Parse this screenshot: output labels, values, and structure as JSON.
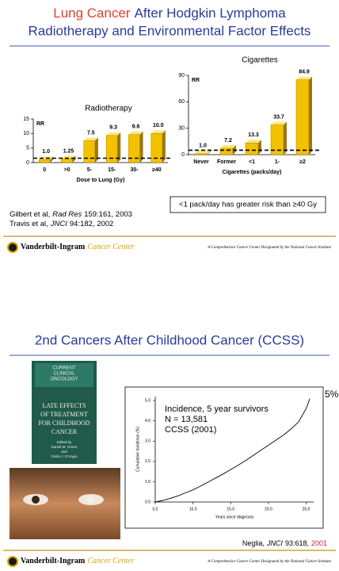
{
  "slide1": {
    "title_parts": [
      "Lung Cancer",
      "After Hodgkin Lymphoma"
    ],
    "title_line2": "Radiotherapy and Environmental Factor Effects",
    "note": "<1 pack/day has greater risk than ≥40 Gy",
    "citations": [
      [
        "Gilbert et al,",
        "Rad Res",
        "159:161, 2003"
      ],
      [
        "Travis et al,",
        "JNCI",
        "94:182, 2002"
      ]
    ]
  },
  "slide2": {
    "title": "2nd Cancers After Childhood Cancer (CCSS)",
    "book": {
      "series": [
        "CURRENT",
        "CLINICAL",
        "ONCOLOGY"
      ],
      "title": [
        "LATE EFFECTS",
        "OF TREATMENT",
        "FOR CHILDHOOD",
        "CANCER"
      ],
      "editors": [
        "Edited by",
        "Daniel M. Green",
        "and",
        "Giulio J. D'Angio"
      ]
    },
    "side_label": "5%",
    "citation": [
      "Neglia,",
      "JNCI",
      "93:618,",
      "2001"
    ]
  },
  "footer": {
    "logo_name": "Vanderbilt-Ingram",
    "logo_sub": "Cancer Center",
    "tagline": "A Comprehensive Cancer Center Designated by the National Cancer Institute"
  },
  "chart_data": [
    {
      "type": "bar",
      "title": "Radiotherapy",
      "ylabel": "RR",
      "xlabel": "Dose to Lung (Gy)",
      "categories": [
        "0",
        ">0",
        "5-",
        "15-",
        "30-",
        "≥40"
      ],
      "values": [
        1.0,
        1.25,
        7.5,
        9.3,
        9.6,
        10.0
      ],
      "value_labels": [
        "1.0",
        "1.25",
        "7.5",
        "9.3",
        "9.6",
        "10.0"
      ],
      "color": "#f2c200",
      "reference_line": 1.5,
      "ylim": [
        0,
        15
      ],
      "yticks": [
        0,
        5,
        10,
        15
      ]
    },
    {
      "type": "bar",
      "title": "Cigarettes",
      "ylabel": "RR",
      "xlabel": "Cigarettes (packs/day)",
      "categories": [
        "Never",
        "Former",
        "<1",
        "1-",
        "≥2"
      ],
      "values": [
        1.0,
        7.2,
        13.3,
        33.7,
        84.9
      ],
      "value_labels": [
        "1.0",
        "7.2",
        "13.3",
        "33.7",
        "84.9"
      ],
      "color": "#f2c200",
      "reference_line": 5,
      "ylim": [
        0,
        90
      ],
      "yticks": [
        0,
        30,
        60,
        90
      ]
    },
    {
      "type": "line",
      "ylabel": "Cumulative Incidence (%)",
      "xlabel": "Years since diagnosis",
      "annotations": [
        "Incidence, 5 year survivors",
        "N = 13,581",
        "CCSS (2001)"
      ],
      "x": [
        5,
        6,
        7,
        8,
        9,
        10,
        11,
        12,
        13,
        14,
        15,
        16,
        17,
        18,
        19,
        20,
        21,
        22,
        23,
        24,
        25,
        25.5
      ],
      "values": [
        0,
        0.08,
        0.18,
        0.3,
        0.45,
        0.6,
        0.78,
        0.98,
        1.18,
        1.38,
        1.6,
        1.82,
        2.05,
        2.3,
        2.55,
        2.8,
        3.05,
        3.3,
        3.6,
        3.95,
        4.6,
        5.1
      ],
      "color": "#000000",
      "xlim": [
        5,
        26
      ],
      "xticks": [
        {
          "value": 5,
          "label": "5.0"
        },
        {
          "value": 10,
          "label": "10.0"
        },
        {
          "value": 15,
          "label": "15.0"
        },
        {
          "value": 20,
          "label": "20.0"
        },
        {
          "value": 25,
          "label": "25.0"
        }
      ],
      "ylim": [
        0,
        5.2
      ],
      "yticks": [
        {
          "value": 0,
          "label": "0.0"
        },
        {
          "value": 1,
          "label": "1.0"
        },
        {
          "value": 2,
          "label": "2.0"
        },
        {
          "value": 3,
          "label": "3.0"
        },
        {
          "value": 4,
          "label": "4.0"
        },
        {
          "value": 5,
          "label": "5.0"
        }
      ]
    }
  ]
}
